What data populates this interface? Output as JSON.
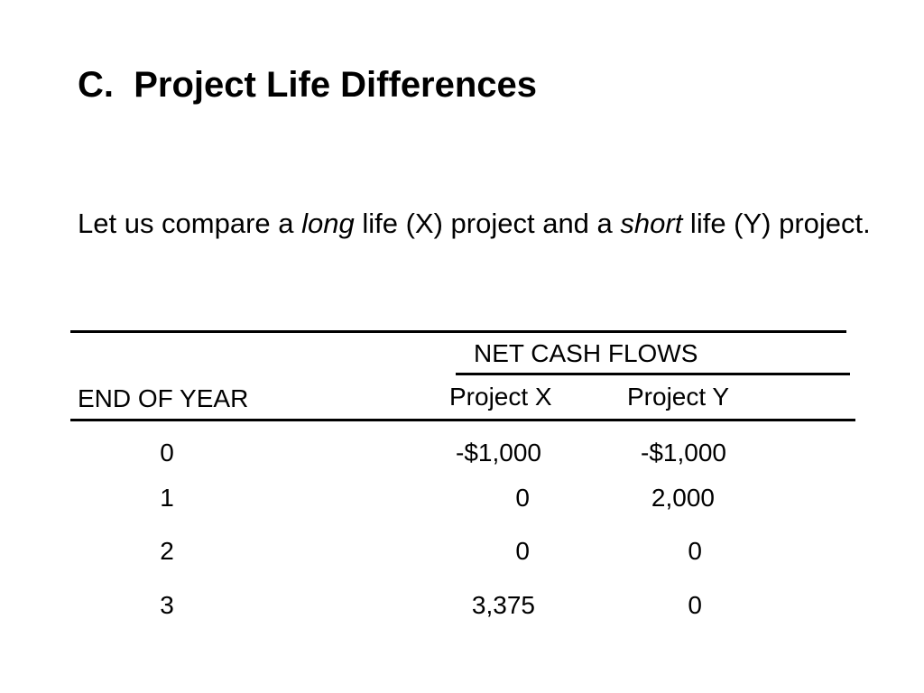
{
  "title": "C.  Project Life Differences",
  "intro": {
    "part1": "Let us compare a ",
    "em1": "long",
    "part2": " life (X) project and a ",
    "em2": "short",
    "part3": " life (Y) project."
  },
  "table": {
    "group_header": "NET CASH FLOWS",
    "row_header": "END OF YEAR",
    "columns": [
      "Project X",
      "Project Y"
    ],
    "rows": [
      {
        "year": "0",
        "x": "-$1,000",
        "y": "-$1,000"
      },
      {
        "year": "1",
        "x": "0",
        "y": "2,000"
      },
      {
        "year": "2",
        "x": "0",
        "y": "0"
      },
      {
        "year": "3",
        "x": "3,375",
        "y": "0"
      }
    ]
  }
}
